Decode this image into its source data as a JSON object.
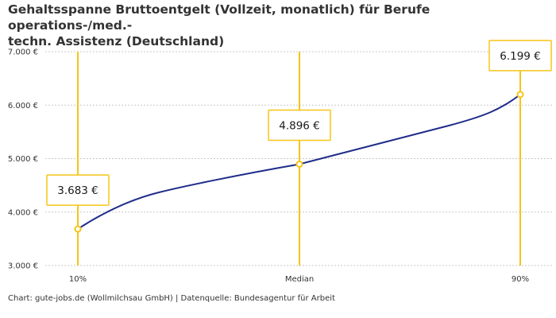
{
  "chart_data": {
    "type": "line",
    "title": "Gehaltsspanne Bruttoentgelt (Vollzeit, monatlich) für Berufe operations-/med.-technischer Assistenz (Deutschland)",
    "title_lines": [
      "Gehaltsspanne Bruttoentgelt (Vollzeit, monatlich) für Berufe operations-/med.-",
      "techn. Assistenz (Deutschland)"
    ],
    "categories": [
      "10%",
      "Median",
      "90%"
    ],
    "values": [
      3683,
      4896,
      6199
    ],
    "value_labels": [
      "3.683 €",
      "4.896 €",
      "6.199 €"
    ],
    "y_ticks": [
      3000,
      4000,
      5000,
      6000,
      7000
    ],
    "y_tick_labels": [
      "3.000 €",
      "4.000 €",
      "5.000 €",
      "6.000 €",
      "7.000 €"
    ],
    "ylim": [
      3000,
      7000
    ],
    "grid": true,
    "colors": {
      "line": "#1f2d8a",
      "accent": "#f5c518",
      "grid": "#c8c8c8",
      "text": "#333333"
    }
  },
  "footer": "Chart: gute-jobs.de (Wollmilchsau GmbH) | Datenquelle: Bundesagentur für Arbeit"
}
